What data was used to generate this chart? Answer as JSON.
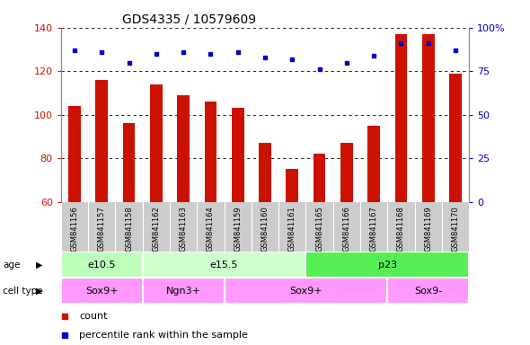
{
  "title": "GDS4335 / 10579609",
  "samples": [
    "GSM841156",
    "GSM841157",
    "GSM841158",
    "GSM841162",
    "GSM841163",
    "GSM841164",
    "GSM841159",
    "GSM841160",
    "GSM841161",
    "GSM841165",
    "GSM841166",
    "GSM841167",
    "GSM841168",
    "GSM841169",
    "GSM841170"
  ],
  "count_values": [
    104,
    116,
    96,
    114,
    109,
    106,
    103,
    87,
    75,
    82,
    87,
    95,
    137,
    137,
    119
  ],
  "percentile_values": [
    87,
    86,
    80,
    85,
    86,
    85,
    86,
    83,
    82,
    76,
    80,
    84,
    91,
    91,
    87
  ],
  "ylim_left": [
    60,
    140
  ],
  "ylim_right": [
    0,
    100
  ],
  "yticks_left": [
    60,
    80,
    100,
    120,
    140
  ],
  "yticks_right": [
    0,
    25,
    50,
    75,
    100
  ],
  "bar_color": "#CC1100",
  "dot_color": "#0000CC",
  "age_groups": [
    {
      "label": "e10.5",
      "start": 0,
      "end": 3,
      "color": "#BBFFBB"
    },
    {
      "label": "e15.5",
      "start": 3,
      "end": 9,
      "color": "#CCFFCC"
    },
    {
      "label": "p23",
      "start": 9,
      "end": 15,
      "color": "#55EE55"
    }
  ],
  "cell_type_groups": [
    {
      "label": "Sox9+",
      "start": 0,
      "end": 3,
      "color": "#FF99FF"
    },
    {
      "label": "Ngn3+",
      "start": 3,
      "end": 6,
      "color": "#FF99FF"
    },
    {
      "label": "Sox9+",
      "start": 6,
      "end": 12,
      "color": "#FF99FF"
    },
    {
      "label": "Sox9-",
      "start": 12,
      "end": 15,
      "color": "#FF99FF"
    }
  ],
  "legend_count_color": "#CC1100",
  "legend_dot_color": "#0000CC",
  "axis_color_left": "#CC1100",
  "axis_color_right": "#0000CC",
  "title_color": "#000000",
  "background_color": "#FFFFFF",
  "plot_bg_color": "#FFFFFF"
}
